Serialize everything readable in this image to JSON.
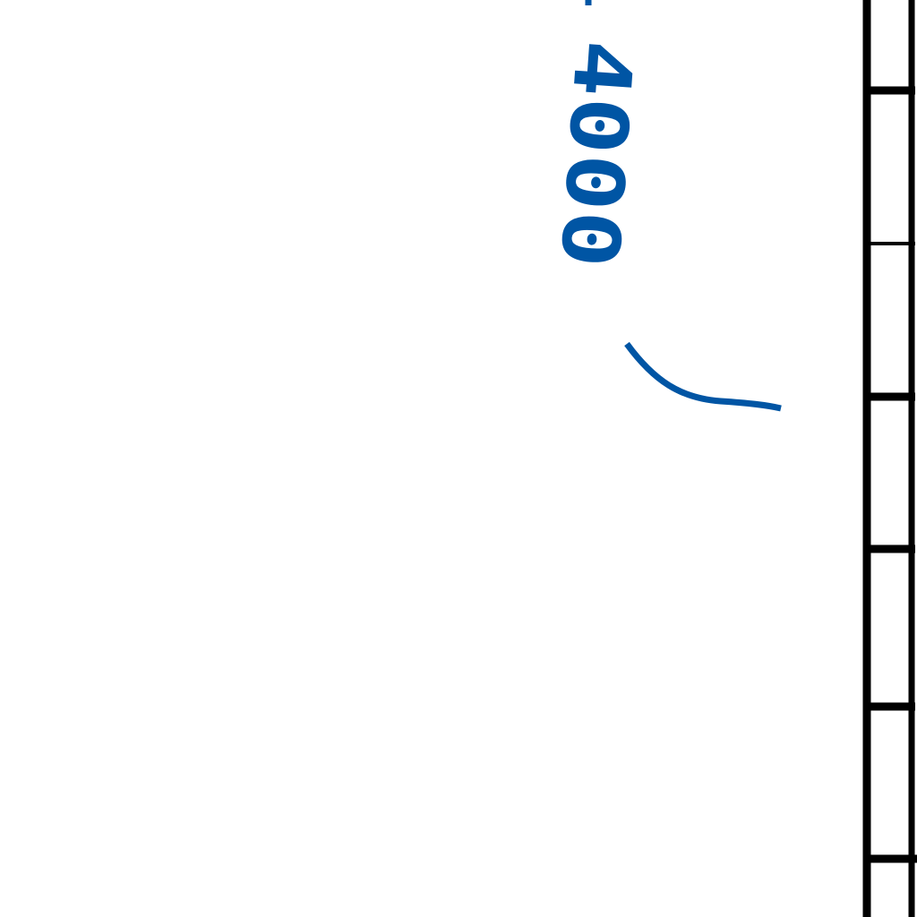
{
  "map": {
    "contour_label": "4000",
    "colors": {
      "contour": "#0055a4",
      "border": "#000000",
      "background": "#ffffff"
    }
  }
}
